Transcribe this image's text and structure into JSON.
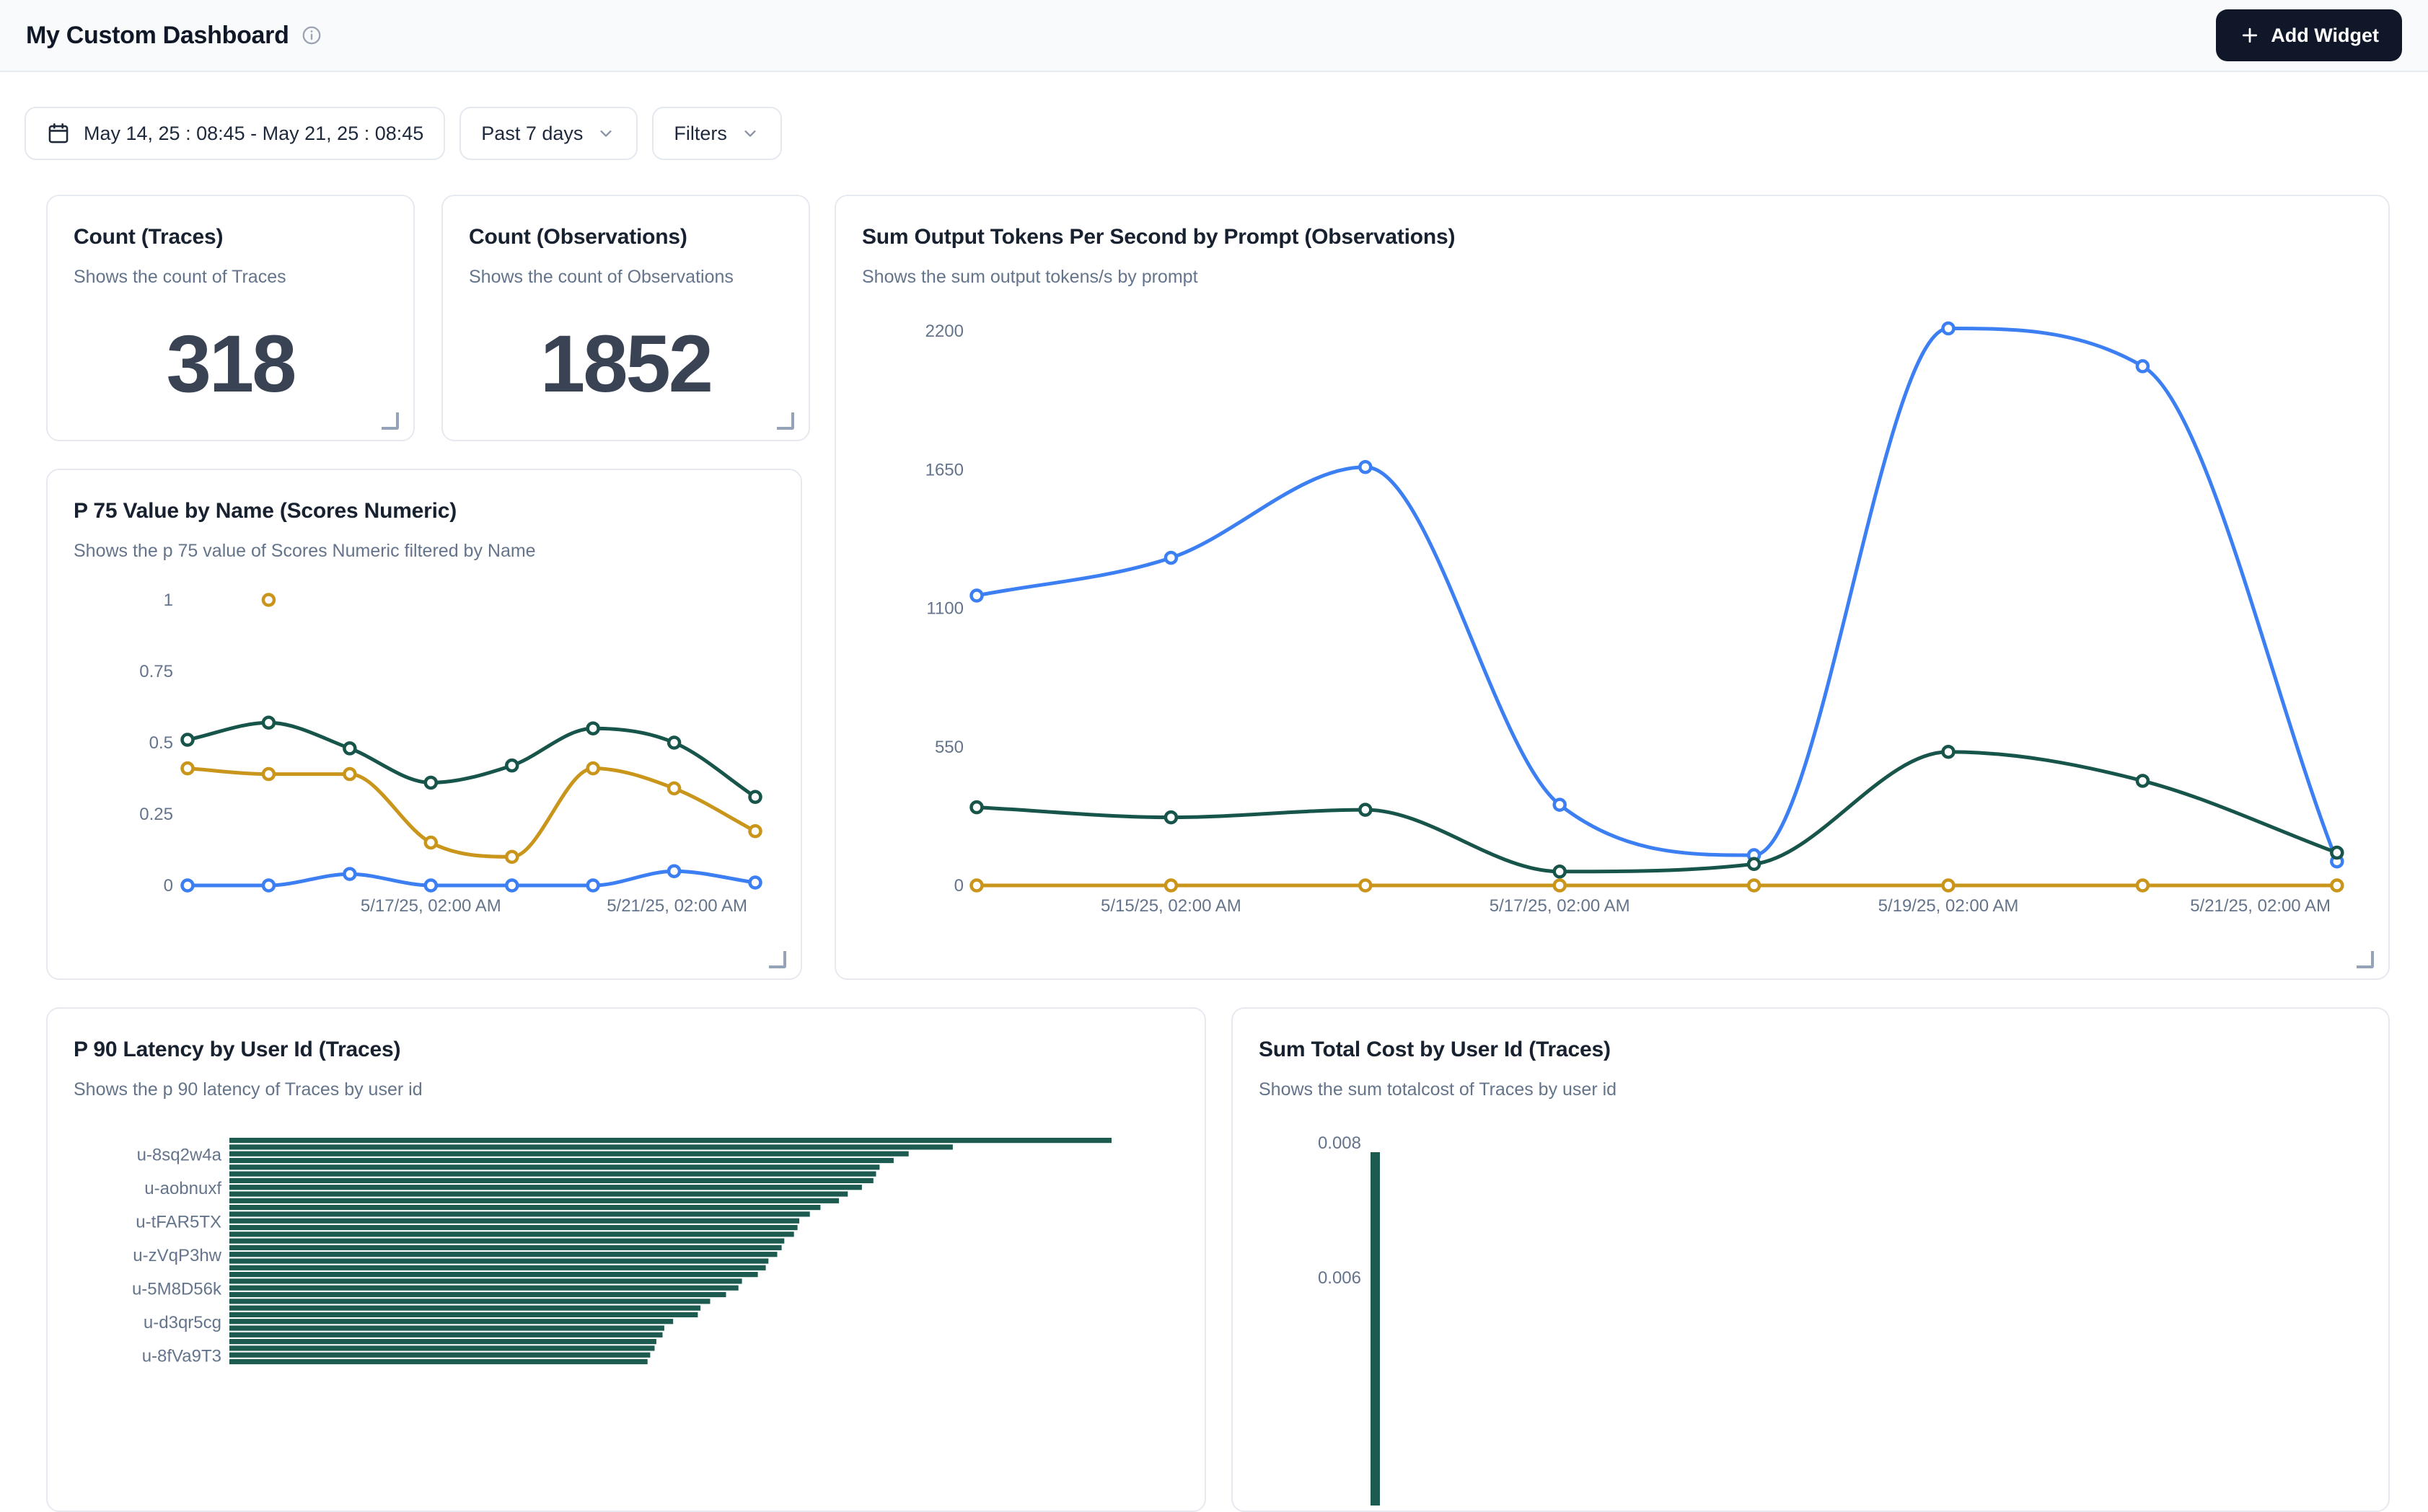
{
  "header": {
    "title": "My Custom Dashboard",
    "add_widget_label": "Add Widget"
  },
  "toolbar": {
    "date_range": "May 14, 25 : 08:45 - May 21, 25 : 08:45",
    "range_preset": "Past 7 days",
    "filters_label": "Filters"
  },
  "colors": {
    "blue": "#3c7ff2",
    "green": "#17544a",
    "bar_green": "#1d5b50",
    "amber": "#c9951a",
    "tick_text": "#64748b",
    "accent_dark": "#0f1729"
  },
  "cards": {
    "count_traces": {
      "title": "Count (Traces)",
      "subtitle": "Shows the count of Traces",
      "value": "318"
    },
    "count_observations": {
      "title": "Count (Observations)",
      "subtitle": "Shows the count of Observations",
      "value": "1852"
    },
    "tokens_per_second": {
      "title": "Sum Output Tokens Per Second by Prompt (Observations)",
      "subtitle": "Shows the sum output tokens/s by prompt"
    },
    "p75_value": {
      "title": "P 75 Value by Name (Scores Numeric)",
      "subtitle": "Shows the p 75 value of Scores Numeric filtered by Name"
    },
    "p90_latency": {
      "title": "P 90 Latency by User Id (Traces)",
      "subtitle": "Shows the p 90 latency of Traces by user id"
    },
    "total_cost": {
      "title": "Sum Total Cost by User Id (Traces)",
      "subtitle": "Shows the sum totalcost of Traces by user id"
    }
  },
  "chart_data": [
    {
      "id": "tokens_per_second",
      "type": "line",
      "title": "Sum Output Tokens Per Second by Prompt (Observations)",
      "ylim": [
        0,
        2200
      ],
      "yticks": [
        "0",
        "550",
        "1100",
        "1650",
        "2200"
      ],
      "grid": false,
      "legend": "none",
      "x_tick_labels": [
        {
          "index": 1,
          "label": "5/15/25, 02:00 AM"
        },
        {
          "index": 3,
          "label": "5/17/25, 02:00 AM"
        },
        {
          "index": 5,
          "label": "5/19/25, 02:00 AM"
        },
        {
          "index": 7,
          "label": "5/21/25, 02:00 AM"
        }
      ],
      "series": [
        {
          "name": "series-blue",
          "color_key": "blue",
          "values": [
            1150,
            1300,
            1660,
            320,
            120,
            2210,
            2060,
            95
          ]
        },
        {
          "name": "series-green",
          "color_key": "green",
          "values": [
            310,
            270,
            300,
            55,
            85,
            530,
            415,
            130
          ]
        },
        {
          "name": "series-amber",
          "color_key": "amber",
          "values": [
            0,
            0,
            0,
            0,
            0,
            0,
            0,
            0
          ]
        }
      ]
    },
    {
      "id": "p75_value",
      "type": "line",
      "title": "P 75 Value by Name (Scores Numeric)",
      "ylim": [
        0,
        1
      ],
      "yticks": [
        "0",
        "0.25",
        "0.5",
        "0.75",
        "1"
      ],
      "grid": false,
      "legend": "none",
      "x_tick_labels": [
        {
          "index": 3,
          "label": "5/17/25, 02:00 AM"
        },
        {
          "index": 7,
          "label": "5/21/25, 02:00 AM"
        }
      ],
      "series": [
        {
          "name": "series-green",
          "color_key": "green",
          "values": [
            0.51,
            0.57,
            0.48,
            0.36,
            0.42,
            0.55,
            0.5,
            0.31
          ]
        },
        {
          "name": "series-amber",
          "color_key": "amber",
          "values": [
            0.41,
            0.39,
            0.39,
            0.15,
            0.1,
            0.41,
            0.34,
            0.19
          ]
        },
        {
          "name": "series-blue",
          "color_key": "blue",
          "values": [
            0,
            0,
            0.04,
            0,
            0,
            0,
            0.05,
            0.01
          ]
        }
      ],
      "isolated_points": [
        {
          "color_key": "amber",
          "index": 1,
          "value": 1
        }
      ]
    },
    {
      "id": "p90_latency",
      "type": "bar",
      "orientation": "horizontal",
      "title": "P 90 Latency by User Id (Traces)",
      "bar_labels": [
        {
          "index": 2,
          "label": "u-8sq2w4a"
        },
        {
          "index": 7,
          "label": "u-aobnuxf"
        },
        {
          "index": 12,
          "label": "u-tFAR5TX"
        },
        {
          "index": 17,
          "label": "u-zVqP3hw"
        },
        {
          "index": 22,
          "label": "u-5M8D56k"
        },
        {
          "index": 27,
          "label": "u-d3qr5cg"
        },
        {
          "index": 32,
          "label": "u-8fVa9T3"
        }
      ],
      "values_pct_of_max": [
        100,
        82,
        77,
        75.3,
        73.7,
        73.3,
        73,
        71.7,
        70.1,
        69.1,
        67,
        65.8,
        64.6,
        64.4,
        64,
        62.9,
        62.6,
        62.1,
        61.1,
        60.8,
        59.9,
        58.1,
        57.7,
        56.3,
        54.5,
        53.4,
        53.1,
        50.3,
        49.3,
        49.1,
        48.4,
        48.2,
        47.7,
        47.4
      ]
    },
    {
      "id": "total_cost",
      "type": "bar",
      "orientation": "vertical",
      "title": "Sum Total Cost by User Id (Traces)",
      "yticks": [
        "0.008",
        "0.006"
      ],
      "visible_bar_value": 0.008
    }
  ]
}
